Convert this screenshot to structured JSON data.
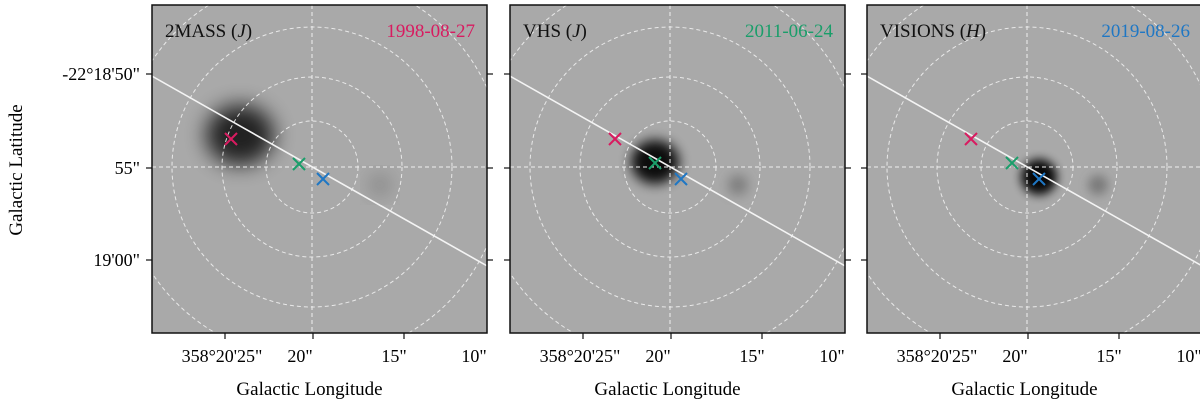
{
  "figure": {
    "ylabel": "Galactic Latitude",
    "xlabel": "Galactic Longitude",
    "yticks": [
      "-22°18'50\"",
      "55\"",
      "19'00\""
    ],
    "xticks": [
      "358°20'25\"",
      "20\"",
      "15\"",
      "10\""
    ]
  },
  "panels": [
    {
      "survey": "2MASS",
      "band": "J",
      "date": "1998-08-27",
      "date_color": "#d81b60",
      "source_blur": 2.6,
      "source_peak": 0.8,
      "source_pos": "near 1998 marker"
    },
    {
      "survey": "VHS",
      "band": "J",
      "date": "2011-06-24",
      "date_color": "#1a9e6a",
      "source_blur": 1.5,
      "source_peak": 0.92,
      "source_pos": "near 2011 marker"
    },
    {
      "survey": "VISIONS",
      "band": "H",
      "date": "2019-08-26",
      "date_color": "#1f77c4",
      "source_blur": 1.2,
      "source_peak": 0.95,
      "source_pos": "near 2019 marker"
    }
  ],
  "epochs": [
    {
      "date": "1998-08-27",
      "color": "#d81b60"
    },
    {
      "date": "2011-06-24",
      "color": "#1a9e6a"
    },
    {
      "date": "2019-08-26",
      "color": "#1f77c4"
    }
  ],
  "colors": {
    "background_gray": "#a9a9a9",
    "grid": "#f0f0f0",
    "track": "#f4f4f4"
  }
}
